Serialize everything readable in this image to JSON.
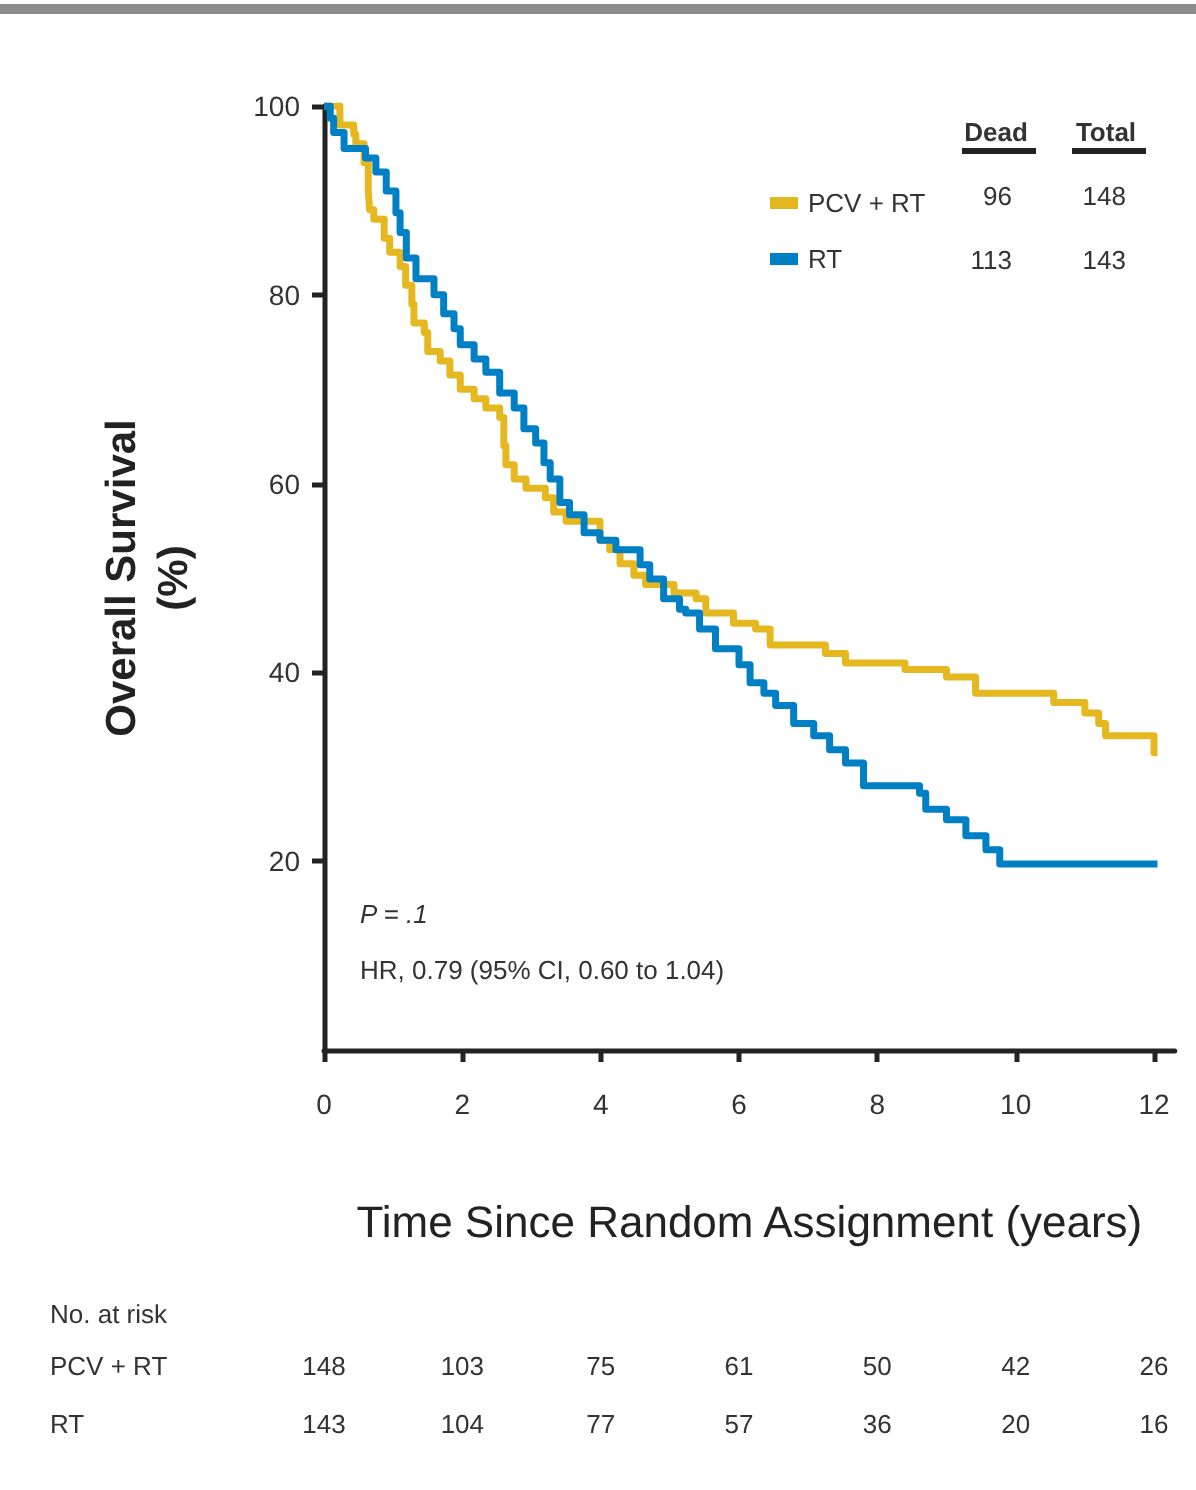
{
  "chart_data": {
    "type": "step",
    "xlabel": "Time Since Random Assignment (years)",
    "ylabel": "Overall Survival (%)",
    "xlim": [
      0,
      12.3
    ],
    "xticks": [
      0,
      2,
      4,
      6,
      8,
      10,
      12
    ],
    "ylim": [
      0,
      100
    ],
    "yticks": [
      20,
      40,
      60,
      80,
      100
    ],
    "grid": false,
    "legend": "top right",
    "marker": "none",
    "line_style": "solid",
    "series": [
      {
        "name": "PCV + RT",
        "color": "#e6b820",
        "x": [
          0,
          0.23,
          0.43,
          0.46,
          0.58,
          0.64,
          0.66,
          0.72,
          0.87,
          0.95,
          1.1,
          1.18,
          1.27,
          1.3,
          1.45,
          1.5,
          1.68,
          1.82,
          1.97,
          2.17,
          2.34,
          2.54,
          2.6,
          2.63,
          2.75,
          2.92,
          3.2,
          3.32,
          3.5,
          3.99,
          4.13,
          4.28,
          4.48,
          4.65,
          5.06,
          5.38,
          5.52,
          5.92,
          6.24,
          6.45,
          7.25,
          7.54,
          8.4,
          9.0,
          9.42,
          10.55,
          11.0,
          11.2,
          11.3,
          12.0,
          12.05
        ],
        "values": [
          100,
          98,
          97,
          96,
          94,
          91,
          89,
          88,
          86,
          84.5,
          83,
          81,
          79,
          77,
          76,
          74,
          73,
          71.5,
          70,
          69,
          68,
          67,
          64,
          62,
          60.5,
          59.5,
          58.5,
          57,
          56,
          54,
          53,
          51.5,
          50.3,
          49.3,
          48.4,
          47.8,
          46.3,
          45.2,
          44.6,
          42.9,
          42,
          41,
          40.3,
          39.5,
          37.8,
          36.8,
          35.7,
          34.6,
          33.3,
          31.5,
          31.5
        ]
      },
      {
        "name": "RT",
        "color": "#0080c4",
        "x": [
          0,
          0.09,
          0.14,
          0.29,
          0.6,
          0.75,
          0.9,
          1.04,
          1.1,
          1.19,
          1.33,
          1.59,
          1.73,
          1.88,
          1.97,
          2.17,
          2.34,
          2.54,
          2.75,
          2.89,
          3.06,
          3.18,
          3.27,
          3.41,
          3.55,
          3.76,
          3.99,
          4.22,
          4.57,
          4.71,
          4.91,
          5.14,
          5.23,
          5.43,
          5.66,
          6.0,
          6.16,
          6.36,
          6.53,
          6.79,
          7.08,
          7.31,
          7.54,
          7.8,
          8.61,
          8.7,
          9.0,
          9.28,
          9.57,
          9.77,
          12.05
        ],
        "values": [
          100,
          98.7,
          97.2,
          95.5,
          94.5,
          93,
          91,
          88.7,
          86.6,
          83.9,
          81.7,
          80,
          78,
          76.4,
          74.7,
          73.2,
          71.8,
          69.6,
          68,
          65.8,
          64.3,
          62.2,
          60.5,
          58,
          56.7,
          54.8,
          54,
          53,
          51.4,
          49.9,
          47.8,
          46.7,
          46.3,
          44.6,
          42.5,
          40.8,
          38.9,
          37.8,
          36.5,
          34.6,
          33.3,
          31.8,
          30.4,
          28,
          27.2,
          25.5,
          24.4,
          22.7,
          21.2,
          19.7,
          19.7
        ]
      }
    ],
    "annotations": [
      "P = .1",
      "HR, 0.79 (95% CI, 0.60 to 1.04)",
      "Dead",
      "Total",
      "96",
      "148",
      "113",
      "143",
      "No. at risk",
      "148",
      "103",
      "75",
      "61",
      "50",
      "42",
      "26",
      "143",
      "104",
      "77",
      "57",
      "36",
      "20",
      "16"
    ]
  }
}
